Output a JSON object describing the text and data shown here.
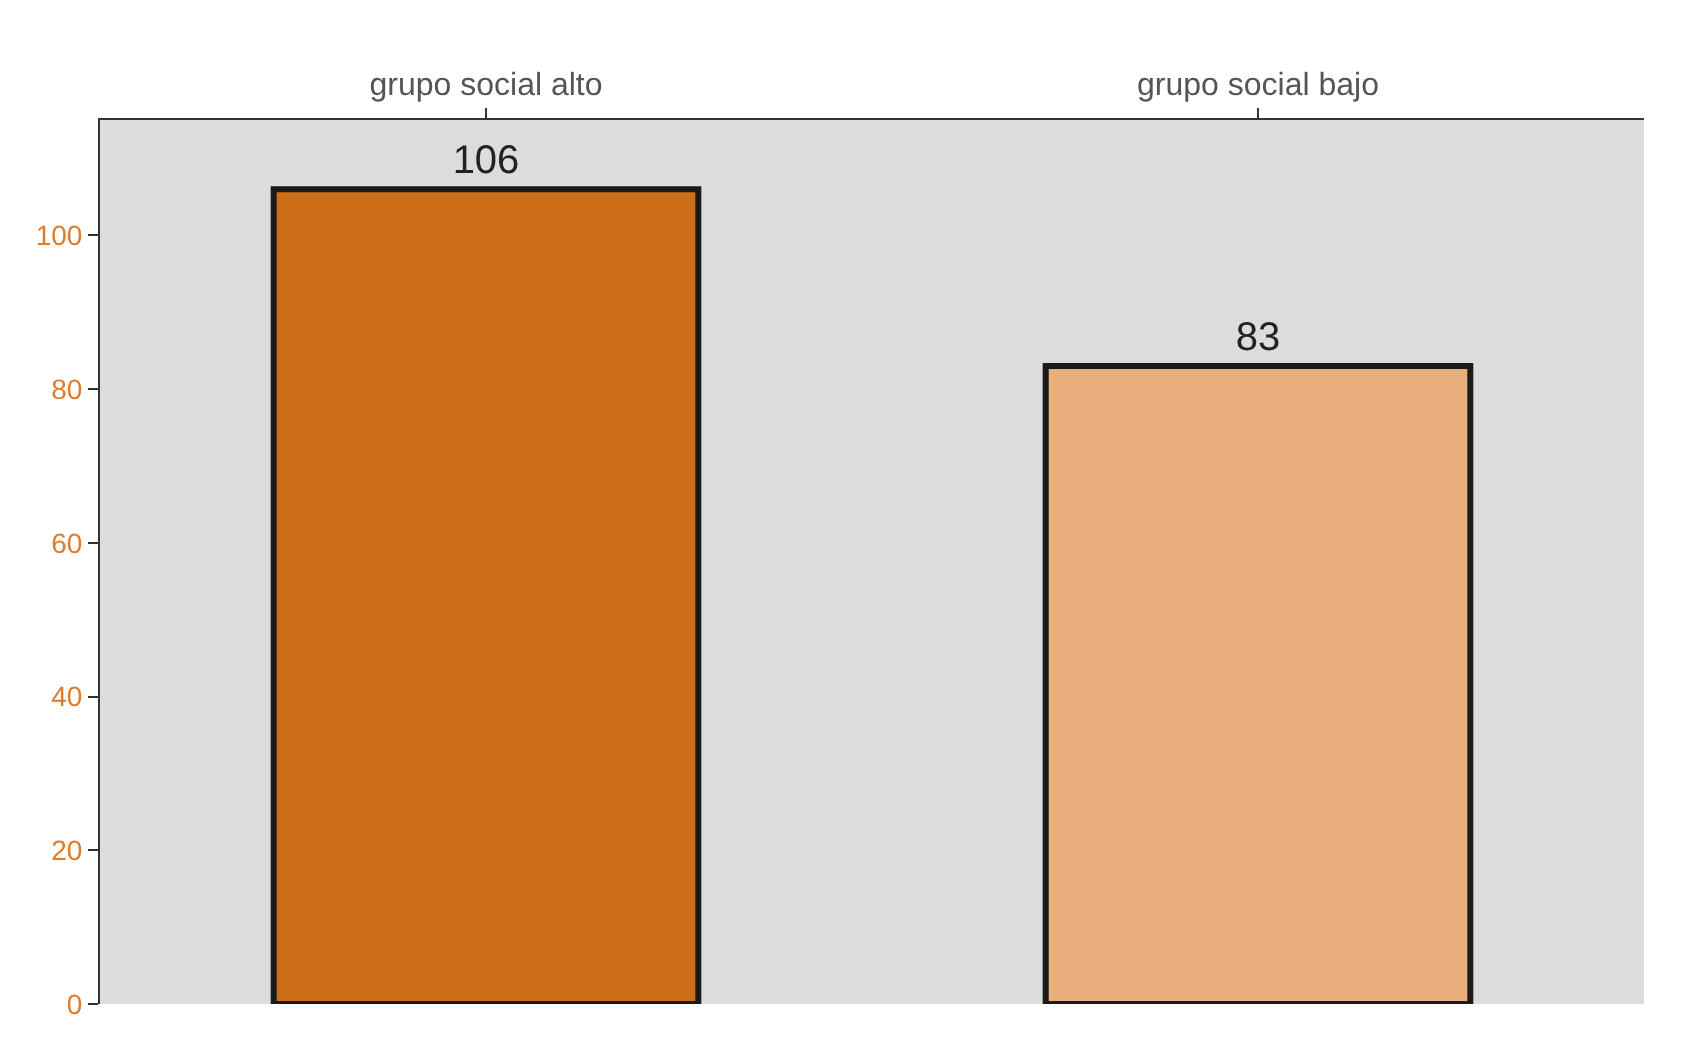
{
  "chart_data": {
    "type": "bar",
    "categories": [
      "grupo social alto",
      "grupo social bajo"
    ],
    "values": [
      106,
      83
    ],
    "colors": [
      "#cd6e1a",
      "#e8ae7c"
    ],
    "ylim": [
      0,
      115
    ],
    "yticks": [
      0,
      20,
      40,
      60,
      80,
      100
    ],
    "data_labels": true,
    "grid": false,
    "legend": false
  }
}
